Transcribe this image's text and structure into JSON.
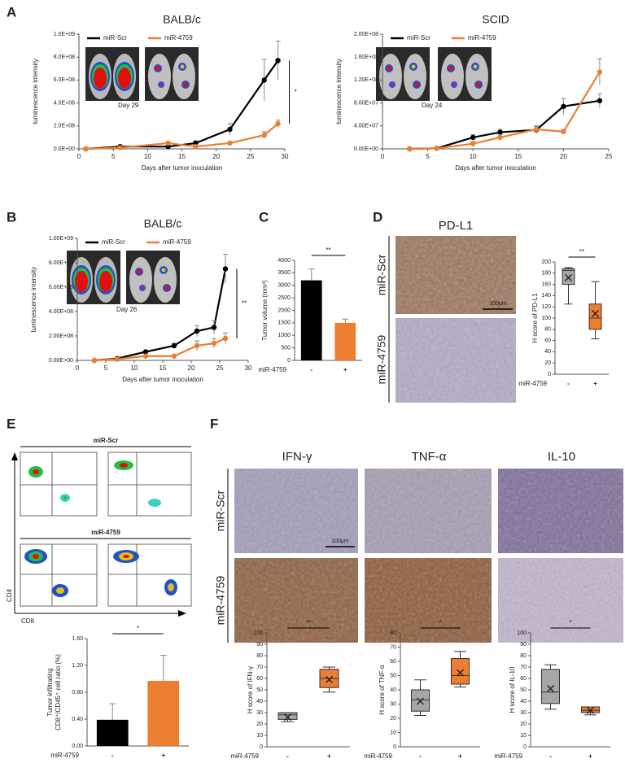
{
  "panel_labels": [
    "A",
    "B",
    "C",
    "D",
    "E",
    "F"
  ],
  "panel_D": {
    "title": "PD-L1",
    "rows": [
      "miR-Scr",
      "miR-4759"
    ],
    "scale_bar": "100μm"
  },
  "panel_E": {
    "groups": [
      "miR-Scr",
      "miR-4759"
    ],
    "y_axis": "CD4",
    "x_axis": "CD8"
  },
  "panel_F": {
    "columns": [
      "IFN-γ",
      "TNF-α",
      "IL-10"
    ],
    "rows": [
      "miR-Scr",
      "miR-4759"
    ],
    "scale_bar": "100μm"
  },
  "chart_data": [
    {
      "type": "line",
      "title": "BALB/c",
      "xlabel": "Days after tumor inoculation",
      "ylabel": "luminescence intensity",
      "image_caption": "Day 29",
      "significance": "*",
      "xlim": [
        0,
        30
      ],
      "xticks": [
        0,
        5,
        10,
        15,
        20,
        25,
        30
      ],
      "ylim": [
        0,
        1000000000.0
      ],
      "yticks": [
        {
          "value": 0,
          "label": "0.0E+00"
        },
        {
          "value": 200000000.0,
          "label": "2.0E+08"
        },
        {
          "value": 400000000.0,
          "label": "4.0E+08"
        },
        {
          "value": 600000000.0,
          "label": "6.0E+08"
        },
        {
          "value": 800000000.0,
          "label": "8.0E+08"
        },
        {
          "value": 1000000000.0,
          "label": "1.0E+09"
        }
      ],
      "x": [
        1,
        6,
        13,
        17,
        22,
        27,
        29
      ],
      "series": [
        {
          "name": "miR-Scr",
          "color": "#000000",
          "values": [
            0,
            20000000.0,
            20000000.0,
            50000000.0,
            170000000.0,
            600000000.0,
            770000000.0
          ],
          "errors": [
            0,
            5000000.0,
            10000000.0,
            20000000.0,
            50000000.0,
            180000000.0,
            170000000.0
          ]
        },
        {
          "name": "miR-4759",
          "color": "#ed7d31",
          "values": [
            0,
            10000000.0,
            50000000.0,
            20000000.0,
            50000000.0,
            120000000.0,
            220000000.0
          ],
          "errors": [
            0,
            5000000.0,
            10000000.0,
            10000000.0,
            10000000.0,
            30000000.0,
            30000000.0
          ]
        }
      ]
    },
    {
      "type": "line",
      "title": "SCID",
      "xlabel": "Days after tumor inoculation",
      "ylabel": "luminescence intensity",
      "image_caption": "Day 24",
      "xlim": [
        0,
        25
      ],
      "xticks": [
        0,
        5,
        10,
        15,
        20,
        25
      ],
      "ylim": [
        0,
        200000000.0
      ],
      "yticks": [
        {
          "value": 0,
          "label": "0.00E+00"
        },
        {
          "value": 40000000.0,
          "label": "4.00E+07"
        },
        {
          "value": 80000000.0,
          "label": "8.00E+07"
        },
        {
          "value": 120000000.0,
          "label": "1.20E+08"
        },
        {
          "value": 160000000.0,
          "label": "1.60E+08"
        },
        {
          "value": 200000000.0,
          "label": "2.00E+08"
        }
      ],
      "x": [
        3,
        6,
        10,
        13,
        17,
        20,
        24
      ],
      "series": [
        {
          "name": "miR-Scr",
          "color": "#000000",
          "values": [
            0,
            1000000.0,
            20000000.0,
            29000000.0,
            33000000.0,
            74000000.0,
            84000000.0
          ],
          "errors": [
            0,
            1000000.0,
            5000000.0,
            5000000.0,
            6000000.0,
            14000000.0,
            12000000.0
          ]
        },
        {
          "name": "miR-4759",
          "color": "#ed7d31",
          "values": [
            0,
            1000000.0,
            9000000.0,
            20000000.0,
            34000000.0,
            30000000.0,
            134000000.0
          ],
          "errors": [
            0,
            1000000.0,
            4000000.0,
            5000000.0,
            6000000.0,
            4000000.0,
            23000000.0
          ]
        }
      ]
    },
    {
      "type": "line",
      "title": "BALB/c",
      "xlabel": "Days after tumor inoculation",
      "ylabel": "luminescence intensity",
      "image_caption": "Day 26",
      "significance": "**",
      "xlim": [
        0,
        30
      ],
      "xticks": [
        0,
        5,
        10,
        15,
        20,
        25,
        30
      ],
      "ylim": [
        0,
        1000000000.0
      ],
      "yticks": [
        {
          "value": 0,
          "label": "0.00E+00"
        },
        {
          "value": 200000000.0,
          "label": "2.00E+08"
        },
        {
          "value": 400000000.0,
          "label": "4.00E+08"
        },
        {
          "value": 600000000.0,
          "label": "6.00E+08"
        },
        {
          "value": 800000000.0,
          "label": "8.00E+08"
        },
        {
          "value": 1000000000.0,
          "label": "1.00E+09"
        }
      ],
      "x": [
        3,
        7,
        12,
        17,
        21,
        24,
        26
      ],
      "series": [
        {
          "name": "miR-Scr",
          "color": "#000000",
          "values": [
            0,
            15000000.0,
            70000000.0,
            120000000.0,
            240000000.0,
            270000000.0,
            750000000.0
          ],
          "errors": [
            0,
            5000000.0,
            10000000.0,
            20000000.0,
            45000000.0,
            55000000.0,
            120000000.0
          ]
        },
        {
          "name": "miR-4759",
          "color": "#ed7d31",
          "values": [
            0,
            10000000.0,
            35000000.0,
            35000000.0,
            120000000.0,
            140000000.0,
            180000000.0
          ],
          "errors": [
            0,
            5000000.0,
            5000000.0,
            5000000.0,
            40000000.0,
            40000000.0,
            45000000.0
          ]
        }
      ]
    },
    {
      "type": "bar",
      "ylabel": "Tumor volume (mm³)",
      "xlabel": "miR-4759",
      "significance": "**",
      "categories": [
        "-",
        "+"
      ],
      "values": [
        3200,
        1500
      ],
      "errors": [
        450,
        150
      ],
      "colors": [
        "#000000",
        "#ed7d31"
      ],
      "ylim": [
        0,
        4000
      ],
      "yticks": [
        0,
        500,
        1000,
        1500,
        2000,
        2500,
        3000,
        3500,
        4000
      ]
    },
    {
      "type": "box",
      "ylabel": "H score of PD-L1",
      "xlabel": "miR-4759",
      "significance": "**",
      "categories": [
        "-",
        "+"
      ],
      "colors": [
        "#a6a6a6",
        "#ed7d31"
      ],
      "boxes": [
        {
          "min": 125,
          "q1": 160,
          "median": 185,
          "q3": 188,
          "max": 190,
          "mean": 172
        },
        {
          "min": 63,
          "q1": 80,
          "median": 100,
          "q3": 125,
          "max": 165,
          "mean": 108
        }
      ],
      "ylim": [
        0,
        200
      ],
      "yticks": [
        0,
        20,
        40,
        60,
        80,
        100,
        120,
        140,
        160,
        180,
        200
      ]
    },
    {
      "type": "bar",
      "ylabel": [
        "Tumor infiltrating",
        "CD8⁺/CD45⁺ cell ratio (%)"
      ],
      "xlabel": "miR-4759",
      "significance": "*",
      "categories": [
        "-",
        "+"
      ],
      "values": [
        0.39,
        0.97
      ],
      "errors": [
        0.24,
        0.38
      ],
      "colors": [
        "#000000",
        "#ed7d31"
      ],
      "ylim": [
        0,
        1.6
      ],
      "yticks": [
        {
          "value": 0,
          "label": "0.00"
        },
        {
          "value": 0.4,
          "label": "0.40"
        },
        {
          "value": 0.8,
          "label": "0.80"
        },
        {
          "value": 1.2,
          "label": "1.20"
        },
        {
          "value": 1.6,
          "label": "1.60"
        }
      ]
    },
    {
      "type": "box",
      "ylabel": "H score of IFN-γ",
      "xlabel": "miR-4759",
      "significance": "**",
      "categories": [
        "-",
        "+"
      ],
      "colors": [
        "#a6a6a6",
        "#ed7d31"
      ],
      "boxes": [
        {
          "min": 22,
          "q1": 24,
          "median": 28,
          "q3": 30,
          "max": 30,
          "mean": 26
        },
        {
          "min": 48,
          "q1": 52,
          "median": 60,
          "q3": 68,
          "max": 70,
          "mean": 59
        }
      ],
      "ylim": [
        0,
        100
      ],
      "yticks": [
        0,
        10,
        20,
        30,
        40,
        50,
        60,
        70,
        80,
        90,
        100
      ]
    },
    {
      "type": "box",
      "ylabel": "H score of TNF-α",
      "xlabel": "miR-4759",
      "significance": "*",
      "categories": [
        "-",
        "+"
      ],
      "colors": [
        "#a6a6a6",
        "#ed7d31"
      ],
      "boxes": [
        {
          "min": 22,
          "q1": 25,
          "median": 33,
          "q3": 40,
          "max": 47,
          "mean": 32
        },
        {
          "min": 42,
          "q1": 44,
          "median": 50,
          "q3": 62,
          "max": 67,
          "mean": 52
        }
      ],
      "ylim": [
        0,
        80
      ],
      "yticks": [
        0,
        10,
        20,
        30,
        40,
        50,
        60,
        70,
        80
      ]
    },
    {
      "type": "box",
      "ylabel": "H score of IL-10",
      "xlabel": "miR-4759",
      "significance": "*",
      "categories": [
        "-",
        "+"
      ],
      "colors": [
        "#a6a6a6",
        "#ed7d31"
      ],
      "boxes": [
        {
          "min": 33,
          "q1": 38,
          "median": 48,
          "q3": 68,
          "max": 72,
          "mean": 51
        },
        {
          "min": 28,
          "q1": 30,
          "median": 32,
          "q3": 35,
          "max": 35,
          "mean": 32
        }
      ],
      "ylim": [
        0,
        100
      ],
      "yticks": [
        0,
        10,
        20,
        30,
        40,
        50,
        60,
        70,
        80,
        90,
        100
      ]
    }
  ]
}
